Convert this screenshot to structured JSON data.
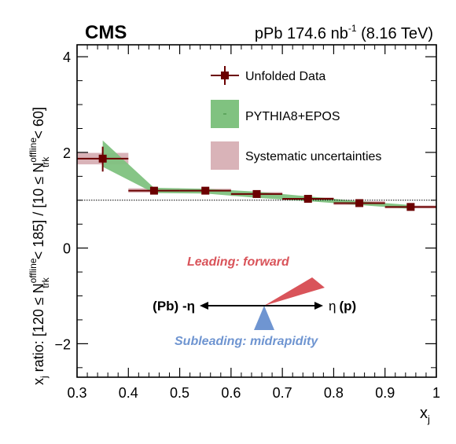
{
  "header": {
    "experiment": "CMS",
    "condition_prefix": "pPb 174.6 nb",
    "condition_sup": "-1",
    "condition_suffix": " (8.16 TeV)"
  },
  "axes": {
    "xlabel_main": "x",
    "xlabel_sub": "j",
    "ylabel": {
      "p1": "x",
      "p1_sub": "j",
      "p2": " ratio: [120 ≤ N",
      "sup1": "offline",
      "sub1": "trk",
      "p3": " < 185] / [10 ≤ N",
      "sup2": "offline",
      "sub2": "trk",
      "p4": " < 60]"
    }
  },
  "legend": {
    "data": "Unfolded Data",
    "model": "PYTHIA8+EPOS",
    "syst": "Systematic uncertainties"
  },
  "inset": {
    "leading": "Leading: forward",
    "subleading": "Subleading: midrapidity",
    "left_label": "(Pb) -η",
    "right_label_eta": "η",
    "right_label_p": "(p)"
  },
  "colors": {
    "data": "#6b0000",
    "model_band": "#80c280",
    "syst_band": "#d9b3b8",
    "leading": "#d9545a",
    "subleading": "#6f95d1"
  },
  "chart_data": {
    "type": "scatter",
    "xlim": [
      0.3,
      1.0
    ],
    "ylim": [
      -2.7,
      4.25
    ],
    "xticks": [
      0.3,
      0.4,
      0.5,
      0.6,
      0.7,
      0.8,
      0.9,
      1.0
    ],
    "xtick_labels": [
      "0.3",
      "0.4",
      "0.5",
      "0.6",
      "0.7",
      "0.8",
      "0.9",
      "1"
    ],
    "yticks": [
      -2,
      0,
      2,
      4
    ],
    "ytick_labels": [
      "−2",
      "0",
      "2",
      "4"
    ],
    "reference_line": 1.0,
    "data_points": [
      {
        "x": 0.35,
        "y": 1.87,
        "xlo": 0.3,
        "xhi": 0.4,
        "ylo": 1.6,
        "yhi": 2.12,
        "syst_lo": 1.75,
        "syst_hi": 1.99
      },
      {
        "x": 0.45,
        "y": 1.2,
        "xlo": 0.4,
        "xhi": 0.5,
        "ylo": 1.16,
        "yhi": 1.24,
        "syst_lo": 1.16,
        "syst_hi": 1.25
      },
      {
        "x": 0.55,
        "y": 1.2,
        "xlo": 0.5,
        "xhi": 0.6,
        "ylo": 1.16,
        "yhi": 1.24,
        "syst_lo": 1.16,
        "syst_hi": 1.24
      },
      {
        "x": 0.65,
        "y": 1.13,
        "xlo": 0.6,
        "xhi": 0.7,
        "ylo": 1.1,
        "yhi": 1.16,
        "syst_lo": 1.09,
        "syst_hi": 1.17
      },
      {
        "x": 0.75,
        "y": 1.03,
        "xlo": 0.7,
        "xhi": 0.8,
        "ylo": 1.0,
        "yhi": 1.06,
        "syst_lo": 1.0,
        "syst_hi": 1.06
      },
      {
        "x": 0.85,
        "y": 0.94,
        "xlo": 0.8,
        "xhi": 0.9,
        "ylo": 0.91,
        "yhi": 0.97,
        "syst_lo": 0.9,
        "syst_hi": 0.98
      },
      {
        "x": 0.95,
        "y": 0.86,
        "xlo": 0.9,
        "xhi": 1.0,
        "ylo": 0.82,
        "yhi": 0.9,
        "syst_lo": 0.83,
        "syst_hi": 0.89
      }
    ],
    "model_band": {
      "x": [
        0.35,
        0.45,
        0.55,
        0.65,
        0.75,
        0.85,
        0.95
      ],
      "lo": [
        1.7,
        1.15,
        1.14,
        1.05,
        0.98,
        0.9,
        0.82
      ],
      "hi": [
        2.25,
        1.26,
        1.24,
        1.18,
        1.08,
        0.98,
        0.9
      ]
    }
  }
}
